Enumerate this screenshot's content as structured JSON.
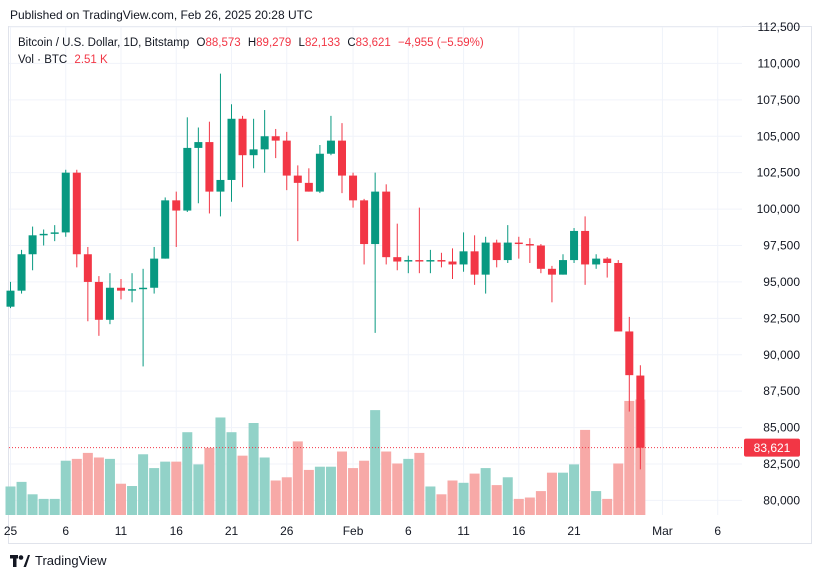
{
  "header": {
    "published": "Published on TradingView.com, Feb 26, 2025 20:28 UTC"
  },
  "legend": {
    "symbol": "Bitcoin / U.S. Dollar, 1D, Bitstamp",
    "o_label": "O",
    "o_value": "88,573",
    "h_label": "H",
    "h_value": "89,279",
    "l_label": "L",
    "l_value": "82,133",
    "c_label": "C",
    "c_value": "83,621",
    "change": "−4,955 (−5.59%)",
    "vol_label": "Vol · BTC",
    "vol_value": "2.51 K"
  },
  "footer": {
    "brand": "TradingView"
  },
  "colors": {
    "up": "#089981",
    "down": "#f23645",
    "vol_up": "#92d2c8",
    "vol_down": "#f7a9a7",
    "grid": "#f0f3fa",
    "price_tag": "#f23645"
  },
  "chart_data": {
    "type": "candlestick",
    "ylim": [
      79000,
      112500
    ],
    "yticks": [
      80000,
      82500,
      85000,
      87500,
      90000,
      92500,
      95000,
      97500,
      100000,
      102500,
      105000,
      107500,
      110000,
      112500
    ],
    "ytick_labels": [
      "80,000",
      "82,500",
      "85,000",
      "87,500",
      "90,000",
      "92,500",
      "95,000",
      "97,500",
      "100,000",
      "102,500",
      "105,000",
      "107,500",
      "110,000",
      "112,500"
    ],
    "xticks": [
      {
        "day": 0,
        "label": "25"
      },
      {
        "day": 5,
        "label": "6"
      },
      {
        "day": 10,
        "label": "11"
      },
      {
        "day": 15,
        "label": "16"
      },
      {
        "day": 20,
        "label": "21"
      },
      {
        "day": 25,
        "label": "26"
      },
      {
        "day": 31,
        "label": "Feb"
      },
      {
        "day": 36,
        "label": "6"
      },
      {
        "day": 41,
        "label": "11"
      },
      {
        "day": 46,
        "label": "16"
      },
      {
        "day": 51,
        "label": "21"
      },
      {
        "day": 59,
        "label": "Mar"
      },
      {
        "day": 64,
        "label": "6"
      }
    ],
    "last_price": 83621,
    "last_price_label": "83,621",
    "candles": [
      {
        "day": 0,
        "o": 93300,
        "h": 95000,
        "l": 93200,
        "c": 94400,
        "v": 0.62
      },
      {
        "day": 1,
        "o": 94400,
        "h": 97200,
        "l": 94200,
        "c": 96900,
        "v": 0.72
      },
      {
        "day": 2,
        "o": 96900,
        "h": 98800,
        "l": 95800,
        "c": 98200,
        "v": 0.45
      },
      {
        "day": 3,
        "o": 98200,
        "h": 98600,
        "l": 97500,
        "c": 98300,
        "v": 0.35
      },
      {
        "day": 4,
        "o": 98300,
        "h": 98900,
        "l": 97800,
        "c": 98400,
        "v": 0.35
      },
      {
        "day": 5,
        "o": 98400,
        "h": 102700,
        "l": 98100,
        "c": 102500,
        "v": 1.18
      },
      {
        "day": 6,
        "o": 102500,
        "h": 102700,
        "l": 96000,
        "c": 96900,
        "v": 1.22
      },
      {
        "day": 7,
        "o": 96900,
        "h": 97400,
        "l": 92300,
        "c": 95000,
        "v": 1.35
      },
      {
        "day": 8,
        "o": 95000,
        "h": 95400,
        "l": 91300,
        "c": 92400,
        "v": 1.25
      },
      {
        "day": 9,
        "o": 92400,
        "h": 95600,
        "l": 92100,
        "c": 94600,
        "v": 1.22
      },
      {
        "day": 10,
        "o": 94600,
        "h": 95200,
        "l": 93800,
        "c": 94400,
        "v": 0.68
      },
      {
        "day": 11,
        "o": 94400,
        "h": 95600,
        "l": 93600,
        "c": 94500,
        "v": 0.63
      },
      {
        "day": 12,
        "o": 94500,
        "h": 95900,
        "l": 89200,
        "c": 94600,
        "v": 1.32
      },
      {
        "day": 13,
        "o": 94600,
        "h": 97400,
        "l": 94200,
        "c": 96600,
        "v": 1.02
      },
      {
        "day": 14,
        "o": 96600,
        "h": 100800,
        "l": 96600,
        "c": 100600,
        "v": 1.16
      },
      {
        "day": 15,
        "o": 100600,
        "h": 101200,
        "l": 97400,
        "c": 99900,
        "v": 1.16
      },
      {
        "day": 16,
        "o": 99900,
        "h": 106300,
        "l": 99800,
        "c": 104200,
        "v": 1.8
      },
      {
        "day": 17,
        "o": 104200,
        "h": 105600,
        "l": 100400,
        "c": 104600,
        "v": 1.1
      },
      {
        "day": 18,
        "o": 104600,
        "h": 106000,
        "l": 99700,
        "c": 101200,
        "v": 1.46
      },
      {
        "day": 19,
        "o": 101200,
        "h": 109300,
        "l": 99500,
        "c": 102000,
        "v": 2.12
      },
      {
        "day": 20,
        "o": 102000,
        "h": 107200,
        "l": 100500,
        "c": 106200,
        "v": 1.8
      },
      {
        "day": 21,
        "o": 106200,
        "h": 106400,
        "l": 101500,
        "c": 103700,
        "v": 1.29
      },
      {
        "day": 22,
        "o": 103700,
        "h": 106200,
        "l": 102800,
        "c": 104100,
        "v": 2.0
      },
      {
        "day": 23,
        "o": 104100,
        "h": 106800,
        "l": 102500,
        "c": 105000,
        "v": 1.25
      },
      {
        "day": 24,
        "o": 105000,
        "h": 105500,
        "l": 103500,
        "c": 104700,
        "v": 0.75
      },
      {
        "day": 25,
        "o": 104700,
        "h": 105300,
        "l": 101300,
        "c": 102300,
        "v": 0.82
      },
      {
        "day": 26,
        "o": 102300,
        "h": 103000,
        "l": 97800,
        "c": 101800,
        "v": 1.6
      },
      {
        "day": 27,
        "o": 101800,
        "h": 102800,
        "l": 101200,
        "c": 101200,
        "v": 0.98
      },
      {
        "day": 28,
        "o": 101200,
        "h": 104400,
        "l": 101100,
        "c": 103800,
        "v": 1.05
      },
      {
        "day": 29,
        "o": 103800,
        "h": 106400,
        "l": 103700,
        "c": 104700,
        "v": 1.05
      },
      {
        "day": 30,
        "o": 104700,
        "h": 105900,
        "l": 101100,
        "c": 102300,
        "v": 1.38
      },
      {
        "day": 31,
        "o": 102300,
        "h": 102500,
        "l": 100100,
        "c": 100600,
        "v": 1.02
      },
      {
        "day": 32,
        "o": 100600,
        "h": 100700,
        "l": 96200,
        "c": 97600,
        "v": 1.18
      },
      {
        "day": 33,
        "o": 97600,
        "h": 102500,
        "l": 91500,
        "c": 101200,
        "v": 2.28
      },
      {
        "day": 34,
        "o": 101200,
        "h": 101700,
        "l": 96200,
        "c": 96700,
        "v": 1.38
      },
      {
        "day": 35,
        "o": 96700,
        "h": 99000,
        "l": 95800,
        "c": 96400,
        "v": 1.12
      },
      {
        "day": 36,
        "o": 96400,
        "h": 96800,
        "l": 95600,
        "c": 96500,
        "v": 1.22
      },
      {
        "day": 37,
        "o": 96500,
        "h": 100100,
        "l": 95600,
        "c": 96400,
        "v": 1.35
      },
      {
        "day": 38,
        "o": 96400,
        "h": 97200,
        "l": 95600,
        "c": 96500,
        "v": 0.62
      },
      {
        "day": 39,
        "o": 96500,
        "h": 97000,
        "l": 96000,
        "c": 96400,
        "v": 0.45
      },
      {
        "day": 40,
        "o": 96400,
        "h": 97300,
        "l": 95200,
        "c": 96200,
        "v": 0.75
      },
      {
        "day": 41,
        "o": 96200,
        "h": 98400,
        "l": 95700,
        "c": 97100,
        "v": 0.7
      },
      {
        "day": 42,
        "o": 97100,
        "h": 98200,
        "l": 94800,
        "c": 95500,
        "v": 0.9
      },
      {
        "day": 43,
        "o": 95500,
        "h": 98100,
        "l": 94200,
        "c": 97700,
        "v": 1.02
      },
      {
        "day": 44,
        "o": 97700,
        "h": 97900,
        "l": 96000,
        "c": 96500,
        "v": 0.65
      },
      {
        "day": 45,
        "o": 96500,
        "h": 98900,
        "l": 96300,
        "c": 97700,
        "v": 0.82
      },
      {
        "day": 46,
        "o": 97700,
        "h": 98100,
        "l": 96600,
        "c": 97600,
        "v": 0.35
      },
      {
        "day": 47,
        "o": 97600,
        "h": 98000,
        "l": 96300,
        "c": 97500,
        "v": 0.38
      },
      {
        "day": 48,
        "o": 97500,
        "h": 97600,
        "l": 95600,
        "c": 95900,
        "v": 0.52
      },
      {
        "day": 49,
        "o": 95900,
        "h": 96100,
        "l": 93600,
        "c": 95500,
        "v": 0.92
      },
      {
        "day": 50,
        "o": 95500,
        "h": 96900,
        "l": 95500,
        "c": 96500,
        "v": 0.92
      },
      {
        "day": 51,
        "o": 96500,
        "h": 98700,
        "l": 96300,
        "c": 98500,
        "v": 1.1
      },
      {
        "day": 52,
        "o": 98500,
        "h": 99500,
        "l": 94800,
        "c": 96200,
        "v": 1.85
      },
      {
        "day": 53,
        "o": 96200,
        "h": 96900,
        "l": 95900,
        "c": 96600,
        "v": 0.52
      },
      {
        "day": 54,
        "o": 96600,
        "h": 96700,
        "l": 95300,
        "c": 96300,
        "v": 0.35
      },
      {
        "day": 55,
        "o": 96300,
        "h": 96500,
        "l": 91700,
        "c": 91600,
        "v": 1.12
      },
      {
        "day": 56,
        "o": 91600,
        "h": 92600,
        "l": 86100,
        "c": 88600,
        "v": 2.48
      },
      {
        "day": 57,
        "o": 88573,
        "h": 89279,
        "l": 82133,
        "c": 83621,
        "v": 2.51
      }
    ]
  }
}
